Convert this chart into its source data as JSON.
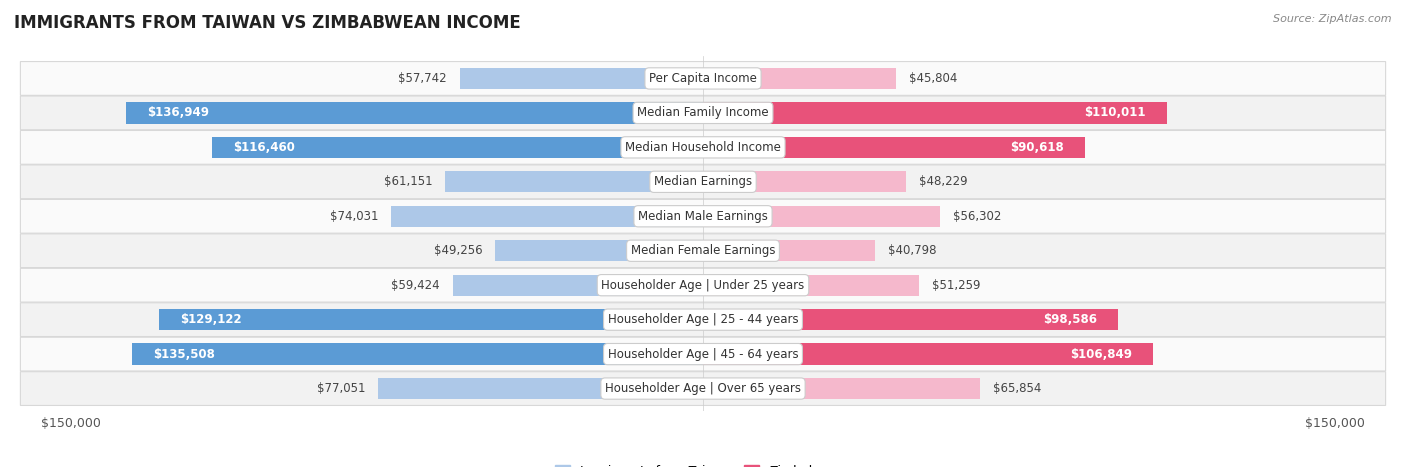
{
  "title": "IMMIGRANTS FROM TAIWAN VS ZIMBABWEAN INCOME",
  "source": "Source: ZipAtlas.com",
  "categories": [
    "Per Capita Income",
    "Median Family Income",
    "Median Household Income",
    "Median Earnings",
    "Median Male Earnings",
    "Median Female Earnings",
    "Householder Age | Under 25 years",
    "Householder Age | 25 - 44 years",
    "Householder Age | 45 - 64 years",
    "Householder Age | Over 65 years"
  ],
  "taiwan_values": [
    57742,
    136949,
    116460,
    61151,
    74031,
    49256,
    59424,
    129122,
    135508,
    77051
  ],
  "zimbabwe_values": [
    45804,
    110011,
    90618,
    48229,
    56302,
    40798,
    51259,
    98586,
    106849,
    65854
  ],
  "taiwan_labels": [
    "$57,742",
    "$136,949",
    "$116,460",
    "$61,151",
    "$74,031",
    "$49,256",
    "$59,424",
    "$129,122",
    "$135,508",
    "$77,051"
  ],
  "zimbabwe_labels": [
    "$45,804",
    "$110,011",
    "$90,618",
    "$48,229",
    "$56,302",
    "$40,798",
    "$51,259",
    "$98,586",
    "$106,849",
    "$65,854"
  ],
  "taiwan_light_color": "#adc8e8",
  "taiwan_dark_color": "#5b9bd5",
  "zimbabwe_light_color": "#f5b8cc",
  "zimbabwe_dark_color": "#e8527a",
  "taiwan_large_threshold": 100000,
  "zimbabwe_large_threshold": 80000,
  "max_value": 150000,
  "x_tick_labels": [
    "$150,000",
    "$150,000"
  ],
  "row_bg_odd": "#f2f2f2",
  "row_bg_even": "#fafafa",
  "background_color": "#ffffff",
  "label_fontsize": 8.5,
  "title_fontsize": 12,
  "source_fontsize": 8,
  "legend_taiwan": "Immigrants from Taiwan",
  "legend_zimbabwe": "Zimbabwean"
}
